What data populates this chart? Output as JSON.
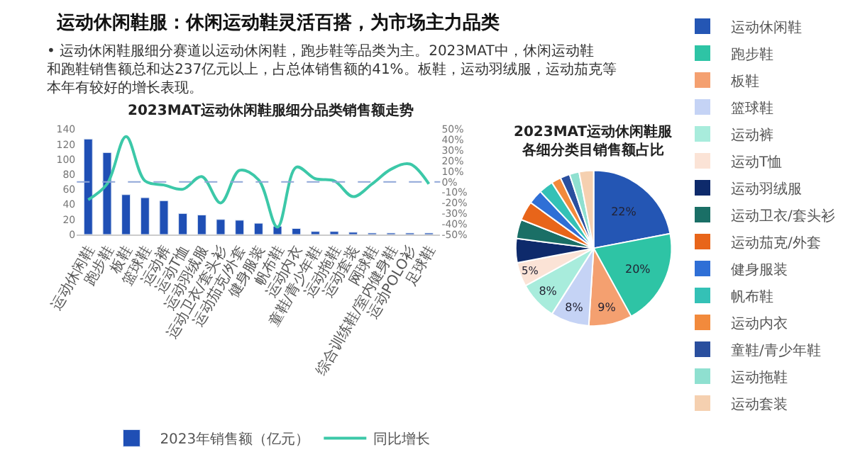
{
  "chart_data": [
    {
      "type": "other",
      "title": "运动休闲鞋服：休闲运动鞋灵活百搭，为市场主力品类",
      "subtitle": "• 运动休闲鞋服细分赛道以运动休闲鞋，跑步鞋等品类为主。2023MAT中，休闲运动鞋和跑鞋销售额总和达237亿元以上，占总体销售额的41%。板鞋，运动羽绒服，运动茄克等本年有较好的增长表现。"
    },
    {
      "type": "bar",
      "title": "2023MAT运动休闲鞋服细分品类销售额走势",
      "categories": [
        "运动休闲鞋",
        "跑步鞋",
        "板鞋",
        "篮球鞋",
        "运动裤",
        "运动T恤",
        "运动羽绒服",
        "运动卫衣/套头衫",
        "运动茄克/外套",
        "健身服装",
        "帆布鞋",
        "运动内衣",
        "童鞋/青少年鞋",
        "运动拖鞋",
        "运动套装",
        "网球鞋",
        "综合训练鞋/室内健身鞋",
        "运动POLO衫",
        "足球鞋"
      ],
      "series": [
        {
          "name": "2023年销售额（亿元）",
          "type": "bar",
          "color": "#1f4fb5",
          "values": [
            127,
            109,
            53,
            49,
            45,
            28,
            26,
            20,
            19,
            15,
            11,
            8,
            4,
            4,
            3,
            2,
            2,
            2,
            2
          ]
        },
        {
          "name": "同比增长",
          "type": "line",
          "axis": "y2",
          "color": "#3cc8a8",
          "values": [
            -17,
            -2,
            43,
            1,
            -3,
            -7,
            5,
            -20,
            11,
            2,
            -43,
            14,
            3,
            1,
            -14,
            -2,
            12,
            17,
            -2
          ]
        }
      ],
      "ylim": [
        0,
        140
      ],
      "yticks": [
        0,
        20,
        40,
        60,
        80,
        100,
        120,
        140
      ],
      "y2lim": [
        -50,
        50
      ],
      "y2ticks": [
        {
          "value": -50,
          "label": "-50%"
        },
        {
          "value": -40,
          "label": "-40%"
        },
        {
          "value": -30,
          "label": "-30%"
        },
        {
          "value": -20,
          "label": "-20%"
        },
        {
          "value": -10,
          "label": "-10%"
        },
        {
          "value": 0,
          "label": "0%"
        },
        {
          "value": 10,
          "label": "10%"
        },
        {
          "value": 20,
          "label": "20%"
        },
        {
          "value": 30,
          "label": "30%"
        },
        {
          "value": 40,
          "label": "40%"
        },
        {
          "value": 50,
          "label": "50%"
        }
      ],
      "ref_lines": [
        {
          "axis": "y2",
          "value": 0,
          "color": "#8ea6d8",
          "line_style": "dashed"
        }
      ],
      "legend": "bottom",
      "marker": "none"
    },
    {
      "type": "pie",
      "title": "2023MAT运动休闲鞋服各细分类目销售额占比",
      "categories": [
        "运动休闲鞋",
        "跑步鞋",
        "板鞋",
        "篮球鞋",
        "运动裤",
        "运动T恤",
        "运动羽绒服",
        "运动卫衣/套头衫",
        "运动茄克/外套",
        "健身服装",
        "帆布鞋",
        "运动内衣",
        "童鞋/青少年鞋",
        "运动拖鞋",
        "运动套装"
      ],
      "values": [
        22,
        20,
        9,
        8,
        8,
        5,
        5,
        4,
        4,
        3,
        3,
        2,
        2,
        2,
        3
      ],
      "value_labels": [
        "22%",
        "20%",
        "9%",
        "8%",
        "8%",
        "5%",
        null,
        null,
        null,
        null,
        null,
        null,
        null,
        null,
        null
      ],
      "colors": [
        "#2456b4",
        "#2ec4a5",
        "#f4a070",
        "#c5d3f5",
        "#a8ecdc",
        "#fbe3d6",
        "#0e2a6b",
        "#1a6f66",
        "#e8651a",
        "#2f6fd6",
        "#34c1b6",
        "#f28a3c",
        "#2a4f9e",
        "#8fe0d0",
        "#f5d0b0"
      ],
      "legend": "right"
    }
  ]
}
